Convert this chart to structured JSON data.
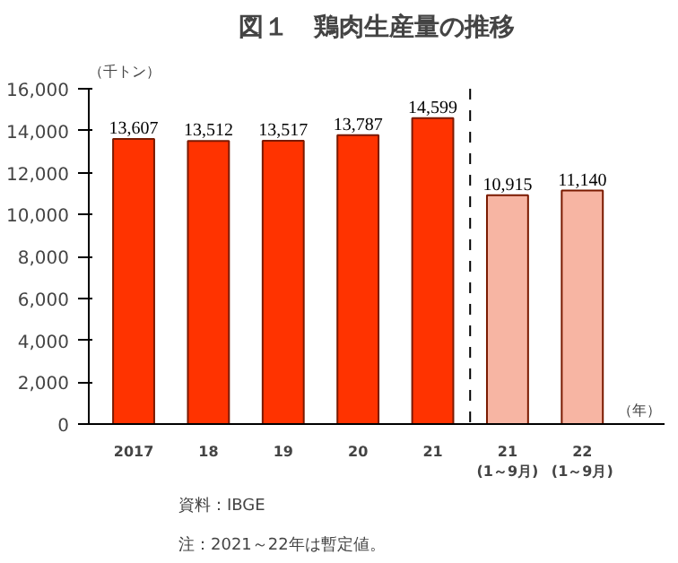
{
  "chart_data": {
    "type": "bar",
    "title": "図１　鶏肉生産量の推移",
    "ylabel": "（千トン）",
    "xlabel": "（年）",
    "categories": [
      "2017",
      "18",
      "19",
      "20",
      "21",
      "21\n(1～9月)",
      "22\n(1～9月)"
    ],
    "values": [
      13607,
      13512,
      13517,
      13787,
      14599,
      10915,
      11140
    ],
    "colors": [
      "#ff3300",
      "#ff3300",
      "#ff3300",
      "#ff3300",
      "#ff3300",
      "#f7b5a3",
      "#f7b5a3"
    ],
    "ylim": [
      0,
      16000
    ],
    "yticks": [
      {
        "value": 0,
        "label": "0"
      },
      {
        "value": 2000,
        "label": "2,000"
      },
      {
        "value": 4000,
        "label": "4,000"
      },
      {
        "value": 6000,
        "label": "6,000"
      },
      {
        "value": 8000,
        "label": "8,000"
      },
      {
        "value": 10000,
        "label": "10,000"
      },
      {
        "value": 12000,
        "label": "12,000"
      },
      {
        "value": 14000,
        "label": "14,000"
      },
      {
        "value": 16000,
        "label": "16,000"
      }
    ],
    "value_labels": [
      "13,607",
      "13,512",
      "13,517",
      "13,787",
      "14,599",
      "10,915",
      "11,140"
    ],
    "grid": false,
    "annotations": [
      "資料：IBGE",
      "注：2021～22年は暫定値。"
    ]
  }
}
